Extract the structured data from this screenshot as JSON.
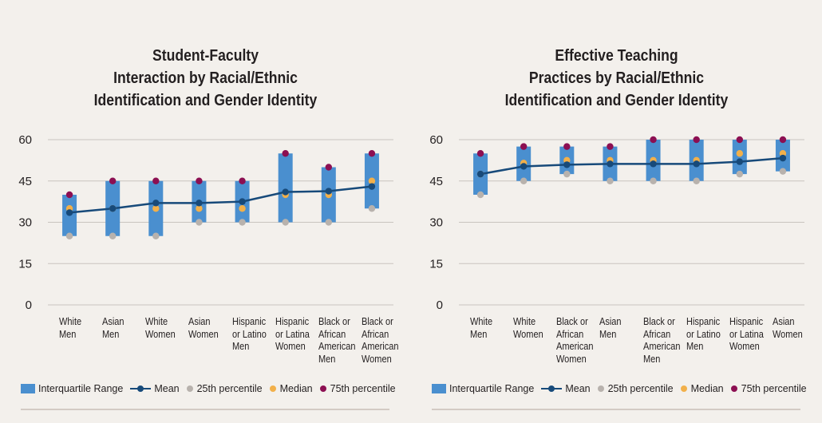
{
  "colors": {
    "iqr": "#4a8fcf",
    "mean": "#174a7a",
    "p25": "#b8b2ad",
    "median": "#f2b04a",
    "p75": "#8c0f52",
    "gridline": "#c9c4bf",
    "axis_text": "#231f20"
  },
  "legend": {
    "iqr": "Interquartile Range",
    "mean": "Mean",
    "p25": "25th percentile",
    "median": "Median",
    "p75": "75th percentile"
  },
  "chart_data": [
    {
      "type": "box-range",
      "title_lines": [
        "Student-Faculty",
        "Interaction by Racial/Ethnic",
        "Identification and Gender Identity"
      ],
      "yticks": [
        0,
        15,
        30,
        45,
        60
      ],
      "ylim": [
        0,
        60
      ],
      "grid": true,
      "legend_position": "bottom",
      "categories": [
        [
          "White",
          "Men"
        ],
        [
          "Asian",
          "Men"
        ],
        [
          "White",
          "Women"
        ],
        [
          "Asian",
          "Women"
        ],
        [
          "Hispanic",
          "or Latino",
          "Men"
        ],
        [
          "Hispanic",
          "or Latina",
          "Women"
        ],
        [
          "Black or",
          "African",
          "American",
          "Men"
        ],
        [
          "Black or",
          "African",
          "American",
          "Women"
        ]
      ],
      "series": {
        "p25": [
          25,
          25,
          25,
          30,
          30,
          30,
          30,
          35
        ],
        "p75": [
          40,
          45,
          45,
          45,
          45,
          55,
          50,
          55
        ],
        "median": [
          35,
          35,
          35,
          35,
          35,
          40,
          40,
          45
        ],
        "mean": [
          33.5,
          35,
          37,
          37,
          37.5,
          41,
          41.3,
          43
        ]
      }
    },
    {
      "type": "box-range",
      "title_lines": [
        "Effective Teaching",
        "Practices by Racial/Ethnic",
        "Identification and Gender Identity"
      ],
      "yticks": [
        0,
        15,
        30,
        45,
        60
      ],
      "ylim": [
        0,
        60
      ],
      "grid": true,
      "legend_position": "bottom",
      "categories": [
        [
          "White",
          "Men"
        ],
        [
          "White",
          "Women"
        ],
        [
          "Black or",
          "African",
          "American",
          "Women"
        ],
        [
          "Asian",
          "Men"
        ],
        [
          "Black or",
          "African",
          "American",
          "Men"
        ],
        [
          "Hispanic",
          "or Latino",
          "Men"
        ],
        [
          "Hispanic",
          "or Latina",
          "Women"
        ],
        [
          "Asian",
          "Women"
        ]
      ],
      "series": {
        "p25": [
          40,
          45,
          47.5,
          45,
          45,
          45,
          47.5,
          48.5
        ],
        "p75": [
          55,
          57.5,
          57.5,
          57.5,
          60,
          60,
          60,
          60
        ],
        "median": [
          47.5,
          51.5,
          52.5,
          52.5,
          52.5,
          52.5,
          55,
          55
        ],
        "mean": [
          47.5,
          50.3,
          50.9,
          51.2,
          51.2,
          51.2,
          52,
          53.3
        ]
      }
    }
  ]
}
